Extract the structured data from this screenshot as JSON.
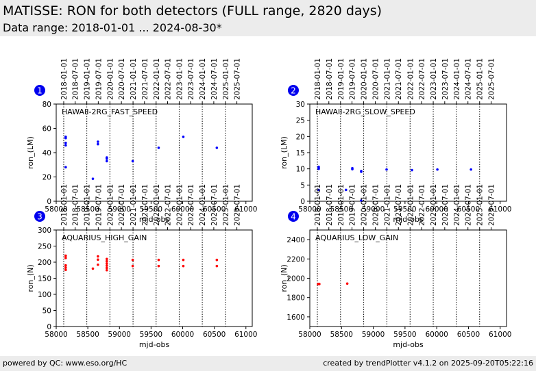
{
  "header": {
    "title": "MATISSE: RON for both detectors (FULL range, 2820 days)",
    "subtitle": "Data range: 2018-01-01 ... 2024-08-30*"
  },
  "footer": {
    "left": "powered by QC: www.eso.org/HC",
    "right": "created by trendPlotter v4.1.2 on 2025-09-20T05:22:16"
  },
  "chart_data": [
    {
      "type": "scatter",
      "badge": "1",
      "inner_label": "HAWAII-2RG_FAST_SPEED",
      "xlabel": "mjd-obs",
      "ylabel": "ron_(LM)",
      "xlim": [
        58000,
        61100
      ],
      "ylim": [
        0,
        80
      ],
      "yticks": [
        0,
        20,
        40,
        60,
        80
      ],
      "point_color": "#0000ff",
      "points": [
        [
          58150,
          53
        ],
        [
          58150,
          52
        ],
        [
          58150,
          48
        ],
        [
          58150,
          46
        ],
        [
          58150,
          28
        ],
        [
          58580,
          18.5
        ],
        [
          58660,
          49
        ],
        [
          58660,
          47
        ],
        [
          58800,
          36
        ],
        [
          58800,
          35
        ],
        [
          58800,
          33
        ],
        [
          59210,
          33
        ],
        [
          59620,
          44
        ],
        [
          60010,
          53
        ],
        [
          60540,
          44
        ]
      ]
    },
    {
      "type": "scatter",
      "badge": "2",
      "inner_label": "HAWAII-2RG_SLOW_SPEED",
      "xlabel": "mjd-obs",
      "ylabel": "ron_(LM)",
      "xlim": [
        58000,
        61100
      ],
      "ylim": [
        0,
        30
      ],
      "yticks": [
        0,
        5,
        10,
        15,
        20,
        25,
        30
      ],
      "point_color": "#0000ff",
      "points": [
        [
          58140,
          10.6
        ],
        [
          58140,
          10.3
        ],
        [
          58140,
          10.0
        ],
        [
          58140,
          3.5
        ],
        [
          58570,
          3.5
        ],
        [
          58670,
          10.2
        ],
        [
          58670,
          9.9
        ],
        [
          58810,
          9.3
        ],
        [
          58810,
          9.1
        ],
        [
          58810,
          0.2
        ],
        [
          59210,
          9.8
        ],
        [
          59610,
          9.6
        ],
        [
          60010,
          9.8
        ],
        [
          60540,
          9.8
        ]
      ]
    },
    {
      "type": "scatter",
      "badge": "3",
      "inner_label": "AQUARIUS_HIGH_GAIN",
      "xlabel": "mjd-obs",
      "ylabel": "ron_(N)",
      "xlim": [
        58000,
        61100
      ],
      "ylim": [
        0,
        300
      ],
      "yticks": [
        0,
        50,
        100,
        150,
        200,
        250,
        300
      ],
      "point_color": "#ff0000",
      "points": [
        [
          58150,
          220
        ],
        [
          58150,
          213
        ],
        [
          58150,
          190
        ],
        [
          58150,
          183
        ],
        [
          58150,
          176
        ],
        [
          58580,
          180
        ],
        [
          58660,
          218
        ],
        [
          58660,
          208
        ],
        [
          58660,
          192
        ],
        [
          58800,
          210
        ],
        [
          58800,
          203
        ],
        [
          58800,
          196
        ],
        [
          58800,
          189
        ],
        [
          58800,
          182
        ],
        [
          58800,
          175
        ],
        [
          59210,
          207
        ],
        [
          59210,
          188
        ],
        [
          59620,
          207
        ],
        [
          59620,
          188
        ],
        [
          60010,
          207
        ],
        [
          60010,
          188
        ],
        [
          60540,
          207
        ],
        [
          60540,
          188
        ]
      ]
    },
    {
      "type": "scatter",
      "badge": "4",
      "inner_label": "AQUARIUS_LOW_GAIN",
      "xlabel": "mjd-obs",
      "ylabel": "ron_(N)",
      "xlim": [
        58000,
        61100
      ],
      "ylim": [
        1500,
        2500
      ],
      "yticks": [
        1600,
        1800,
        2000,
        2200,
        2400
      ],
      "point_color": "#ff0000",
      "points": [
        [
          58130,
          1940
        ],
        [
          58150,
          1940
        ],
        [
          58590,
          1945
        ]
      ]
    }
  ],
  "shared_axes": {
    "xticks": [
      58000,
      58500,
      59000,
      59500,
      60000,
      60500,
      61000
    ],
    "date_ticks": [
      {
        "label": "2018-01-01",
        "mjd": 58119
      },
      {
        "label": "2018-07-01",
        "mjd": 58300
      },
      {
        "label": "2019-01-01",
        "mjd": 58484
      },
      {
        "label": "2019-07-01",
        "mjd": 58665
      },
      {
        "label": "2020-01-01",
        "mjd": 58849
      },
      {
        "label": "2020-07-01",
        "mjd": 59031
      },
      {
        "label": "2021-01-01",
        "mjd": 59215
      },
      {
        "label": "2021-07-01",
        "mjd": 59396
      },
      {
        "label": "2022-01-01",
        "mjd": 59580
      },
      {
        "label": "2022-07-01",
        "mjd": 59761
      },
      {
        "label": "2023-01-01",
        "mjd": 59945
      },
      {
        "label": "2023-07-01",
        "mjd": 60126
      },
      {
        "label": "2024-01-01",
        "mjd": 60310
      },
      {
        "label": "2024-07-01",
        "mjd": 60492
      },
      {
        "label": "2025-01-01",
        "mjd": 60676
      },
      {
        "label": "2025-07-01",
        "mjd": 60857
      }
    ],
    "year_boundaries_dotted": true
  }
}
